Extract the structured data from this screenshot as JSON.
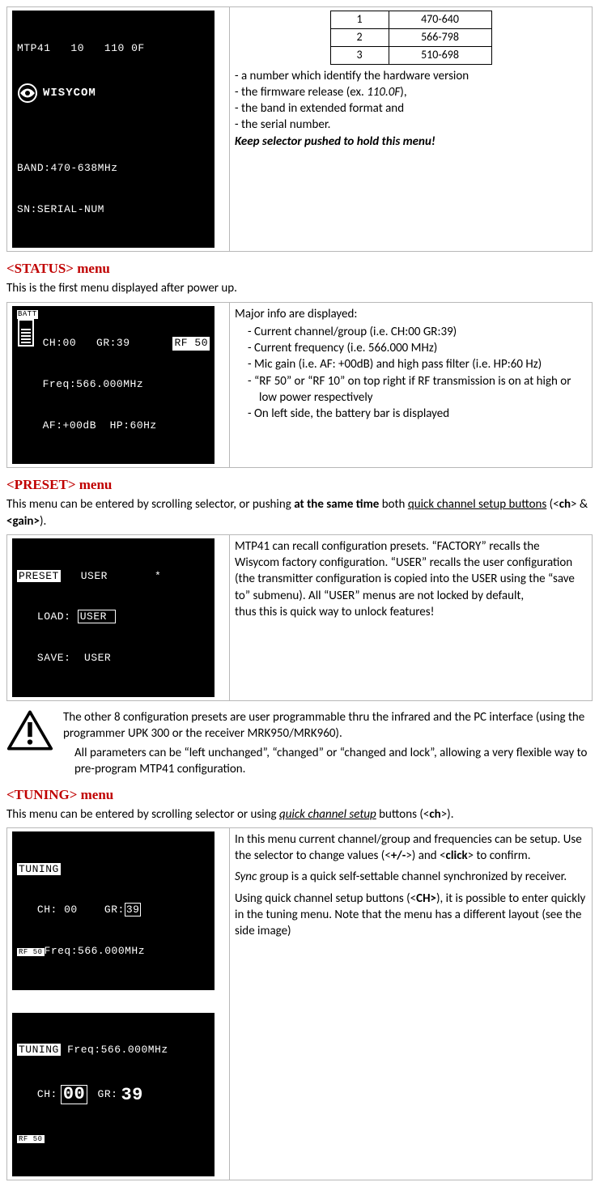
{
  "intro": {
    "lcd": {
      "line1": "MTP41   10   110 0F",
      "logo": "WISYCOM",
      "band": "BAND:470-638MHz",
      "sn": "SN:SERIAL-NUM"
    },
    "ranges": [
      {
        "n": "1",
        "v": "470-640"
      },
      {
        "n": "2",
        "v": "566-798"
      },
      {
        "n": "3",
        "v": "510-698"
      }
    ],
    "lines": [
      "- a number which identify the hardware version",
      "- the firmware release (ex. 110.0F),",
      "- the band in extended format and",
      "- the serial number."
    ],
    "keep": "Keep selector pushed to hold this menu!"
  },
  "status": {
    "title": "<STATUS> menu",
    "caption": "This is the first menu displayed after power up.",
    "lcd": {
      "l1a": "CH:00   GR:39",
      "rf": "RF 50",
      "l2": "Freq:566.000MHz",
      "l3": "AF:+00dB  HP:60Hz"
    },
    "lead": "Major info are displayed:",
    "items": [
      "Current channel/group (i.e. CH:00 GR:39)",
      "Current frequency (i.e. 566.000 MHz)",
      "Mic gain (i.e. AF: +00dB) and high pass filter (i.e. HP:60 Hz)",
      "“RF 50” or “RF 10” on top right if RF transmission is on at high or low power respectively",
      "On left side, the battery bar is displayed"
    ]
  },
  "preset": {
    "title": "<PRESET> menu",
    "intro_a": "This menu can be entered by scrolling selector, or pushing ",
    "intro_b": "at the same time",
    "intro_c": " both ",
    "intro_d": "quick channel setup buttons",
    "intro_e": " (<",
    "intro_f": "ch",
    "intro_g": "> & ",
    "intro_h": "<gain>",
    "intro_i": ").",
    "lcd": {
      "l1a": "PRESET",
      "l1b": "   USER       *",
      "l2": "   LOAD: USER",
      "l3": "   SAVE:  USER"
    },
    "desc": "MTP41 can recall configuration presets. “FACTORY” recalls the Wisycom factory configuration. “USER” recalls the user configuration (the transmitter configuration is copied into the USER using the “save to” submenu). All “USER” menus are not locked by default,",
    "desc2": "thus this is quick way to unlock features!",
    "note1": "The other  8 configuration presets are user programmable thru the infrared and the PC interface (using the programmer UPK 300 or the receiver MRK950/MRK960).",
    "note2": "All parameters can be “left unchanged”, “changed” or “changed and lock”, allowing a very flexible way to pre-program MTP41 configuration."
  },
  "tuning": {
    "title": "<TUNING> menu",
    "intro_a": "This menu can be entered by scrolling selector or using ",
    "intro_b": "quick channel setup",
    "intro_c": " buttons (<",
    "intro_d": "ch",
    "intro_e": ">).",
    "lcd1": {
      "l1": "TUNING",
      "l2": "   CH: 00    GR: 39",
      "rf": "RF 50",
      "l3": "Freq:566.000MHz"
    },
    "lcd2": {
      "l1": "TUNING",
      "freq": "Freq:566.000MHz",
      "ch_lbl": "CH:",
      "ch_v": "00",
      "gr_lbl": " GR:",
      "gr_v": "39",
      "rf": "RF 50"
    },
    "p1a": "In this menu current channel/group and frequencies can be setup. Use the selector to change values (<",
    "p1b": "+/-",
    "p1c": ">) and <",
    "p1d": "click",
    "p1e": "> to confirm.",
    "p2a": "Sync",
    "p2b": " group is a quick self-settable channel synchronized by receiver.",
    "p3a": "Using quick channel setup buttons (<",
    "p3b": "CH>",
    "p3c": "), it is possible to enter quickly in the tuning menu. Note that the menu has a different layout (see the side image)"
  }
}
